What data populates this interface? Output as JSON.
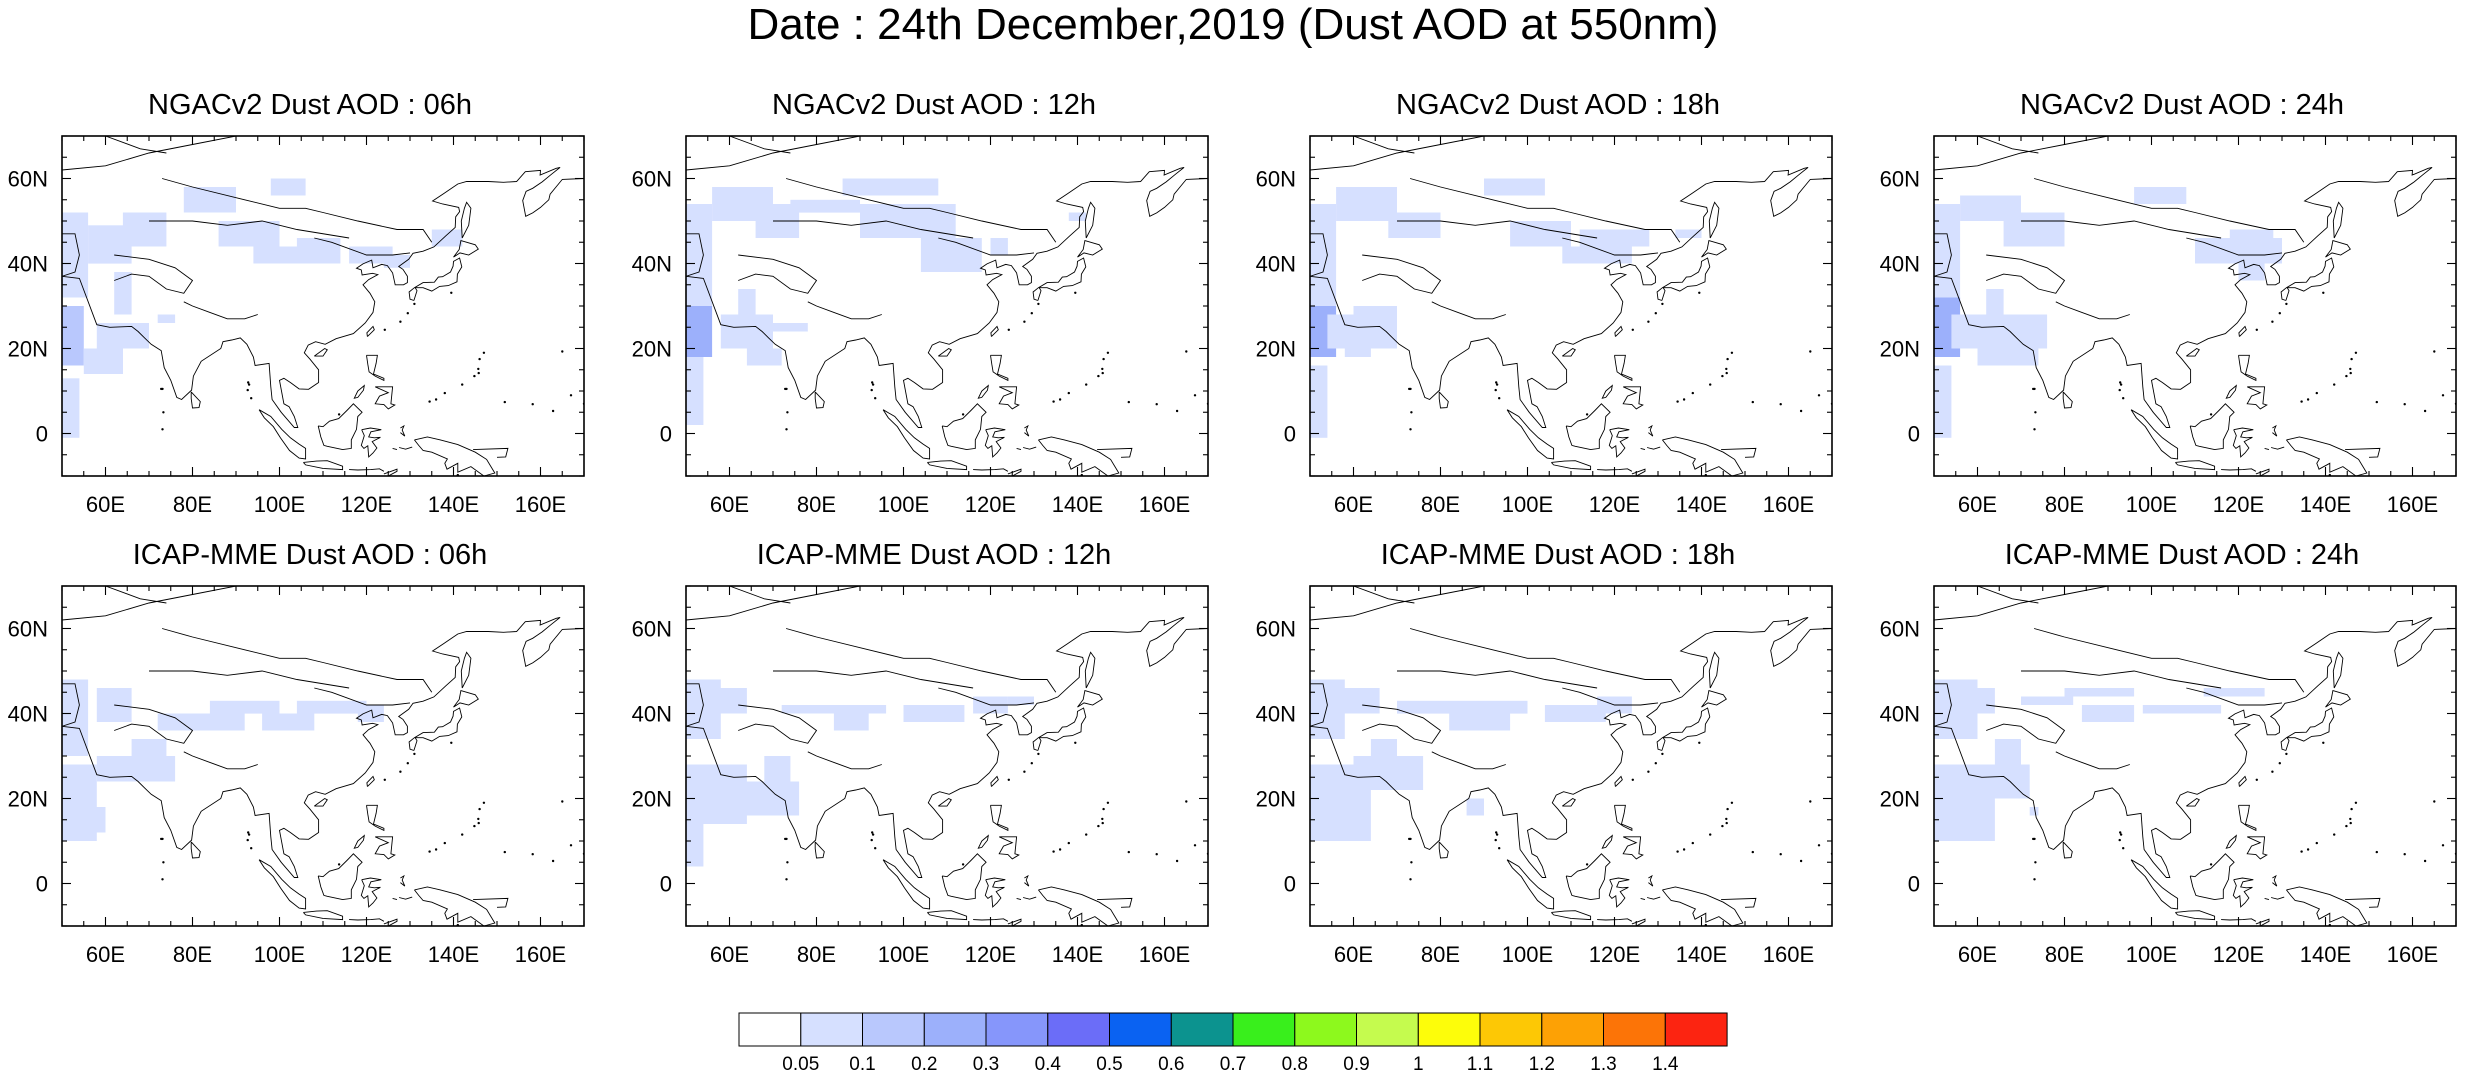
{
  "title": "Date : 24th December,2019 (Dust AOD at 550nm)",
  "panels": [
    {
      "title": "NGACv2 Dust AOD : 06h"
    },
    {
      "title": "NGACv2 Dust AOD : 12h"
    },
    {
      "title": "NGACv2 Dust AOD : 18h"
    },
    {
      "title": "NGACv2 Dust AOD : 24h"
    },
    {
      "title": "ICAP-MME Dust AOD : 06h"
    },
    {
      "title": "ICAP-MME Dust AOD : 12h"
    },
    {
      "title": "ICAP-MME Dust AOD : 18h"
    },
    {
      "title": "ICAP-MME Dust AOD : 24h"
    }
  ],
  "map_extent": {
    "lon": [
      50,
      170
    ],
    "lat": [
      -10,
      70
    ]
  },
  "lon_ticks": [
    "60E",
    "80E",
    "100E",
    "120E",
    "140E",
    "160E"
  ],
  "lon_tick_values": [
    60,
    80,
    100,
    120,
    140,
    160
  ],
  "lat_ticks": [
    "60N",
    "40N",
    "20N",
    "0"
  ],
  "lat_tick_values": [
    60,
    40,
    20,
    0
  ],
  "colorbar": {
    "labels": [
      "0.05",
      "0.1",
      "0.2",
      "0.3",
      "0.4",
      "0.5",
      "0.6",
      "0.7",
      "0.8",
      "0.9",
      "1",
      "1.1",
      "1.2",
      "1.3",
      "1.4"
    ],
    "colors": [
      "#ffffff",
      "#d6e0ff",
      "#b9c8fd",
      "#9cb0fb",
      "#8696fb",
      "#6b6df8",
      "#0a62f2",
      "#0c938f",
      "#39ef1c",
      "#8df91d",
      "#c5fb4e",
      "#fdfd0a",
      "#fdc805",
      "#fda105",
      "#fc7407",
      "#fc2411"
    ]
  },
  "legend_note": "Dust AOD at 550nm"
}
